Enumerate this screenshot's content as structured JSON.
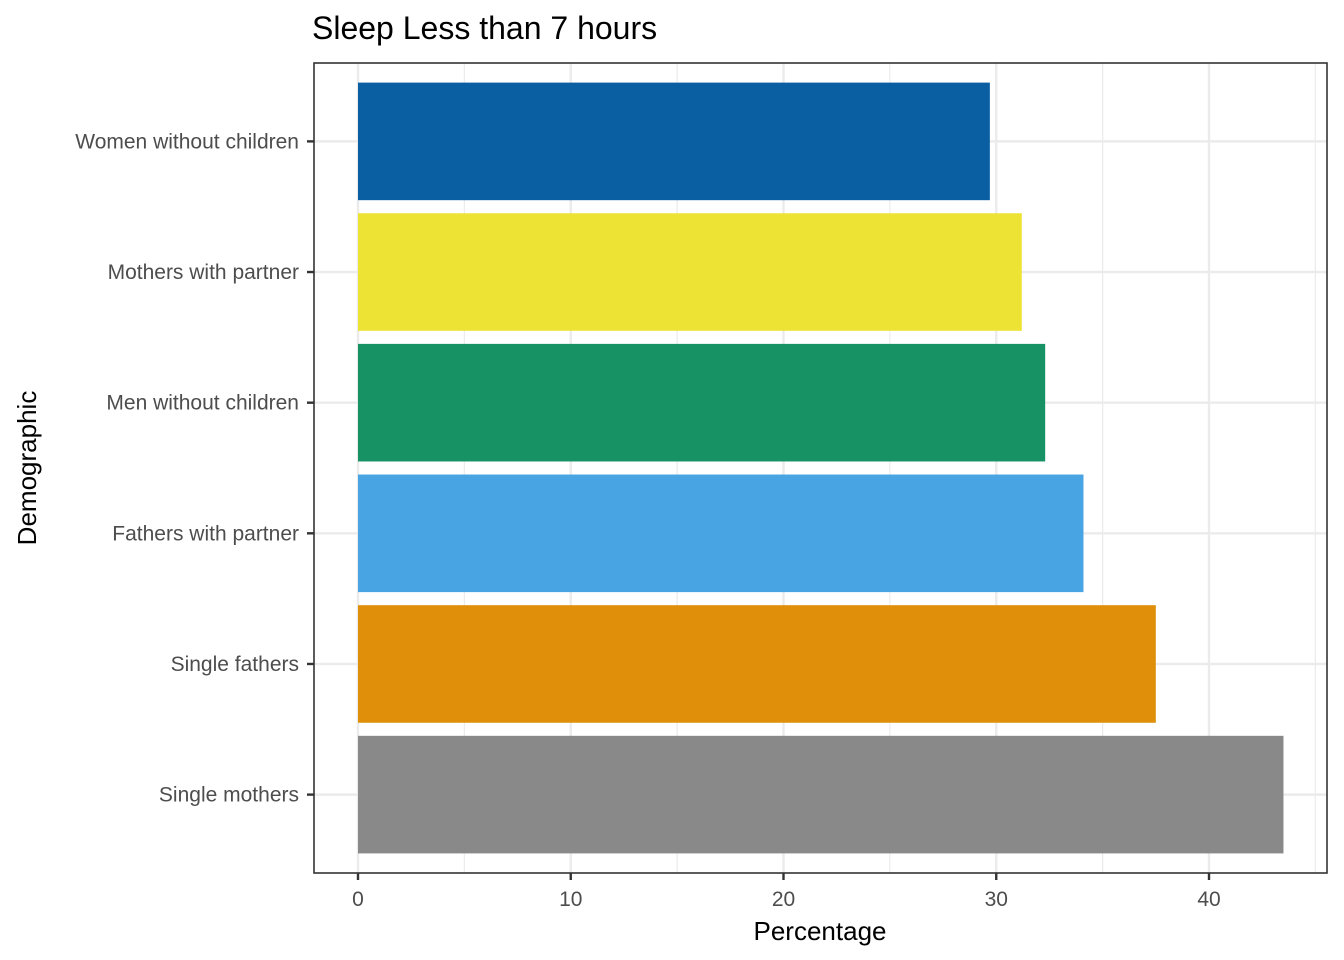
{
  "chart_data": {
    "type": "bar",
    "orientation": "horizontal",
    "title": "Sleep Less than 7 hours",
    "xlabel": "Percentage",
    "ylabel": "Demographic",
    "xlim": [
      -2.1,
      45.6
    ],
    "x_ticks": [
      0,
      10,
      20,
      30,
      40
    ],
    "x_tick_labels": [
      "0",
      "10",
      "20",
      "30",
      "40"
    ],
    "x_minor": [
      5,
      15,
      25,
      35,
      45
    ],
    "grid": true,
    "legend": "none",
    "categories": [
      "Women without children",
      "Mothers with partner",
      "Men without children",
      "Fathers with partner",
      "Single fathers",
      "Single mothers"
    ],
    "values": [
      29.7,
      31.2,
      32.3,
      34.1,
      37.5,
      43.5
    ],
    "colors": [
      "#0a5fa3",
      "#ede334",
      "#169265",
      "#48a4e2",
      "#df8f0a",
      "#898989"
    ]
  }
}
